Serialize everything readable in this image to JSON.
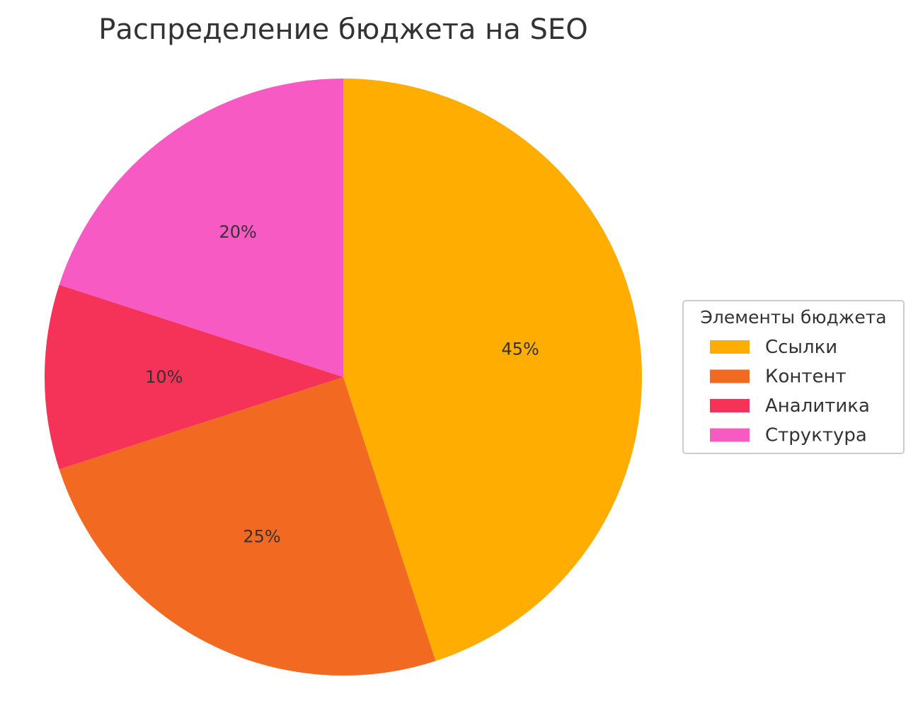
{
  "chart_data": {
    "type": "pie",
    "title": "Распределение бюджета на SEO",
    "legend_title": "Элементы бюджета",
    "legend_position": "right",
    "start_angle_deg": 90,
    "direction": "clockwise",
    "slices": [
      {
        "label": "Ссылки",
        "value": 45,
        "pct_label": "45%",
        "color": "#FFAE00"
      },
      {
        "label": "Контент",
        "value": 25,
        "pct_label": "25%",
        "color": "#F26A21"
      },
      {
        "label": "Аналитика",
        "value": 10,
        "pct_label": "10%",
        "color": "#F53258"
      },
      {
        "label": "Структура",
        "value": 20,
        "pct_label": "20%",
        "color": "#F75AC2"
      }
    ]
  }
}
